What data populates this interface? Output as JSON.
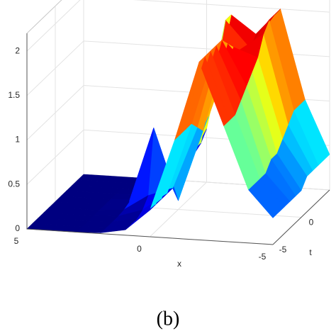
{
  "chart_data": {
    "type": "surface",
    "colormap": "jet",
    "xlabel": "x",
    "ylabel": "t",
    "caption": "(b)",
    "x": [
      -5,
      -4,
      -3,
      -2,
      -1,
      0,
      1,
      2,
      3,
      4,
      5
    ],
    "y": [
      -5,
      -4,
      -3,
      -2,
      -1,
      0,
      1,
      2,
      3,
      4,
      5
    ],
    "z": [
      [
        0.3,
        0.6,
        1.3,
        2.0,
        1.1,
        0.3,
        0.06,
        0.01,
        0,
        0,
        0
      ],
      [
        0.3,
        0.6,
        1.3,
        2.0,
        1.1,
        0.3,
        0.06,
        0.01,
        0,
        0,
        0
      ],
      [
        0.3,
        0.6,
        1.3,
        2.0,
        1.1,
        0.3,
        0.06,
        0.01,
        0,
        0,
        0
      ],
      [
        0.3,
        0.6,
        1.4,
        2.0,
        1.1,
        0.3,
        0.1,
        0.01,
        0,
        0,
        0
      ],
      [
        0.3,
        0.7,
        1.5,
        2.0,
        1.0,
        0.3,
        0.2,
        0.02,
        0,
        0,
        0
      ],
      [
        0.3,
        0.7,
        1.6,
        1.9,
        0.9,
        0.1,
        0.9,
        0.05,
        0,
        0,
        0
      ],
      [
        0.4,
        0.8,
        1.7,
        1.8,
        1.0,
        0.4,
        0.2,
        0.02,
        0,
        0,
        0
      ],
      [
        0.4,
        0.9,
        1.9,
        1.7,
        1.2,
        0.4,
        0.05,
        0.01,
        0,
        0,
        0
      ],
      [
        0.4,
        1.0,
        2.0,
        1.6,
        1.6,
        0.5,
        0.05,
        0,
        0,
        0,
        0
      ],
      [
        0.4,
        1.0,
        2.0,
        1.6,
        1.9,
        0.5,
        0.05,
        0,
        0,
        0,
        0
      ],
      [
        0.4,
        1.0,
        2.0,
        1.7,
        1.9,
        0.6,
        0.05,
        0,
        0,
        0,
        0
      ]
    ],
    "xlim": [
      -5,
      5
    ],
    "ylim": [
      -5,
      5
    ],
    "zlim": [
      0,
      2.2
    ],
    "xticks": [
      -5,
      0,
      5
    ],
    "yticks": [
      -5,
      0
    ],
    "zticks": [
      0,
      0.5,
      1,
      1.5,
      2
    ],
    "grid": true
  }
}
